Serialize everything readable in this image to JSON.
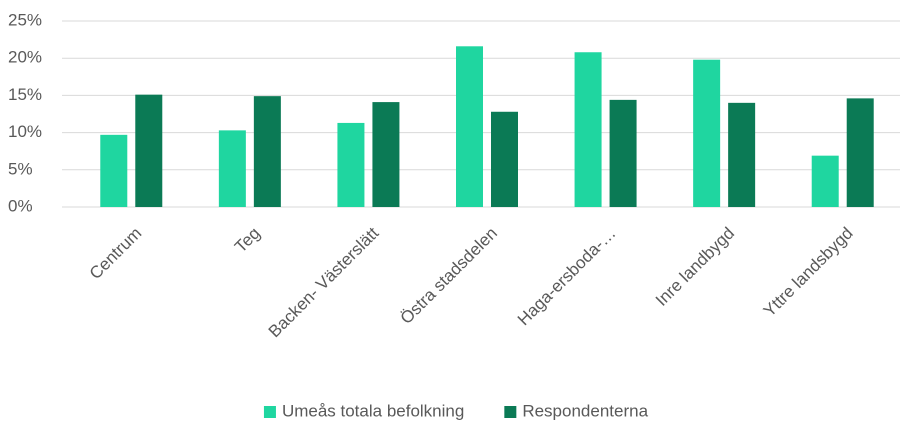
{
  "chart_data": {
    "type": "bar",
    "categories": [
      "Centrum",
      "Teg",
      "Backen- Västerslätt",
      "Östra stadsdelen",
      "Haga-ersboda-…",
      "Inre landbygd",
      "Yttre landsbygd"
    ],
    "series": [
      {
        "name": "Umeås totala befolkning",
        "color": "#1fd6a0",
        "values": [
          9.7,
          10.3,
          11.3,
          21.6,
          20.8,
          19.8,
          6.9
        ]
      },
      {
        "name": "Respondenterna",
        "color": "#0b7a55",
        "values": [
          15.1,
          14.9,
          14.1,
          12.8,
          14.4,
          14.0,
          14.6
        ]
      }
    ],
    "ylim": [
      0,
      25
    ],
    "yticks": [
      {
        "value": 0,
        "label": "0%"
      },
      {
        "value": 5,
        "label": "5%"
      },
      {
        "value": 10,
        "label": "10%"
      },
      {
        "value": 15,
        "label": "15%"
      },
      {
        "value": 20,
        "label": "20%"
      },
      {
        "value": 25,
        "label": "25%"
      }
    ],
    "grid": true,
    "legend": "bottom"
  }
}
